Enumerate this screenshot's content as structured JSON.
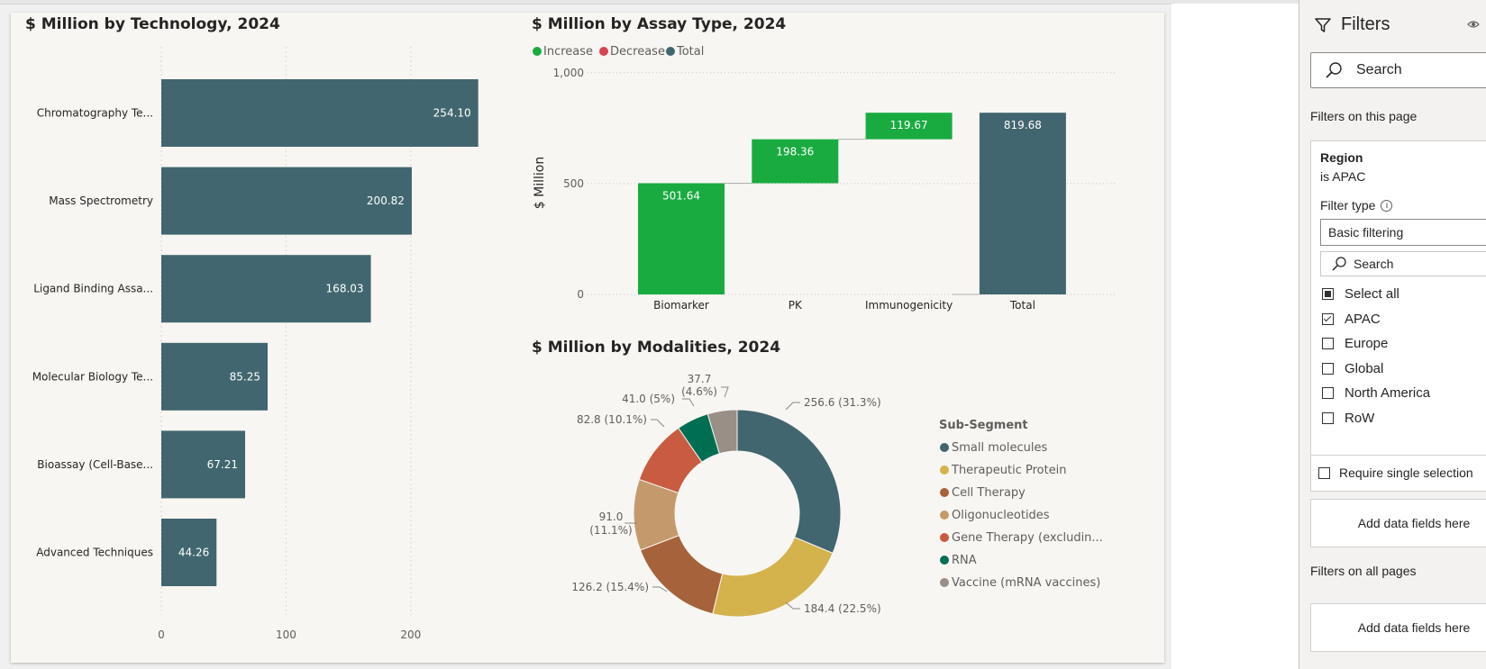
{
  "colors": {
    "bar": "#41666f",
    "increase": "#1aab40",
    "decrease": "#d64550",
    "total": "#41666f"
  },
  "charts": {
    "technology": {
      "title": "$ Million by Technology, 2024"
    },
    "assay": {
      "title": "$ Million by Assay Type, 2024",
      "ylabel": "$ Million",
      "legend": [
        {
          "label": "Increase",
          "color": "#1aab40"
        },
        {
          "label": "Decrease",
          "color": "#d64550"
        },
        {
          "label": "Total",
          "color": "#41666f"
        }
      ]
    },
    "modalities": {
      "title": "$ Million by Modalities, 2024",
      "legend_title": "Sub-Segment"
    }
  },
  "chart_data": [
    {
      "type": "bar",
      "orientation": "horizontal",
      "title": "$ Million by Technology, 2024",
      "categories": [
        "Chromatography Te...",
        "Mass Spectrometry",
        "Ligand Binding Assa...",
        "Molecular Biology Te...",
        "Bioassay (Cell-Base...",
        "Advanced Techniques"
      ],
      "values": [
        254.1,
        200.82,
        168.03,
        85.25,
        67.21,
        44.26
      ],
      "value_labels": [
        "254.10",
        "200.82",
        "168.03",
        "85.25",
        "67.21",
        "44.26"
      ],
      "xlim": [
        0,
        300
      ],
      "xticks": [
        "0",
        "100",
        "200"
      ],
      "grid": true
    },
    {
      "type": "bar",
      "subtype": "waterfall",
      "title": "$ Million by Assay Type, 2024",
      "categories": [
        "Biomarker",
        "PK",
        "Immunogenicity",
        "Total"
      ],
      "values": [
        501.64,
        198.36,
        119.67,
        819.68
      ],
      "value_labels": [
        "501.64",
        "198.36",
        "119.67",
        "819.68"
      ],
      "kinds": [
        "increase",
        "increase",
        "increase",
        "total"
      ],
      "ylabel": "$ Million",
      "ylim": [
        0,
        1000
      ],
      "yticks": [
        "0",
        "500",
        "1,000"
      ],
      "legend": [
        "Increase",
        "Decrease",
        "Total"
      ],
      "legend_position": "top-left"
    },
    {
      "type": "pie",
      "subtype": "donut",
      "title": "$ Million by Modalities, 2024",
      "legend_title": "Sub-Segment",
      "legend_position": "right",
      "slices": [
        {
          "name": "Small molecules",
          "value": 256.6,
          "pct": "31.3%",
          "color": "#41666f"
        },
        {
          "name": "Therapeutic Protein",
          "value": 184.4,
          "pct": "22.5%",
          "color": "#d4b24c"
        },
        {
          "name": "Cell Therapy",
          "value": 126.2,
          "pct": "15.4%",
          "color": "#a6623a"
        },
        {
          "name": "Oligonucleotides",
          "value": 91.0,
          "pct": "11.1%",
          "color": "#c49a6c"
        },
        {
          "name": "Gene Therapy (excludin...",
          "value": 82.8,
          "pct": "10.1%",
          "color": "#c95b40"
        },
        {
          "name": "RNA",
          "value": 41.0,
          "pct": "5%",
          "color": "#006e51"
        },
        {
          "name": "Vaccine (mRNA vaccines)",
          "value": 37.7,
          "pct": "4.6%",
          "color": "#9a8f86"
        }
      ],
      "slice_labels": [
        "256.6 (31.3%)",
        "184.4 (22.5%)",
        "126.2 (15.4%)",
        "91.0",
        "(11.1%)",
        "82.8 (10.1%)",
        "41.0 (5%)",
        "37.7",
        "(4.6%)"
      ]
    }
  ],
  "filters": {
    "title": "Filters",
    "search_placeholder": "Search",
    "this_page_label": "Filters on this page",
    "card": {
      "field": "Region",
      "condition": "is APAC",
      "filter_type_label": "Filter type",
      "filter_type_value": "Basic filtering",
      "search_placeholder": "Search",
      "options": [
        {
          "label": "Select all",
          "state": "partial"
        },
        {
          "label": "APAC",
          "state": "checked"
        },
        {
          "label": "Europe",
          "state": "unchecked"
        },
        {
          "label": "Global",
          "state": "unchecked"
        },
        {
          "label": "North America",
          "state": "unchecked"
        },
        {
          "label": "RoW",
          "state": "unchecked"
        }
      ],
      "require_single": "Require single selection"
    },
    "add_fields": "Add data fields here",
    "all_pages_label": "Filters on all pages",
    "add_fields_all": "Add data fields here"
  }
}
